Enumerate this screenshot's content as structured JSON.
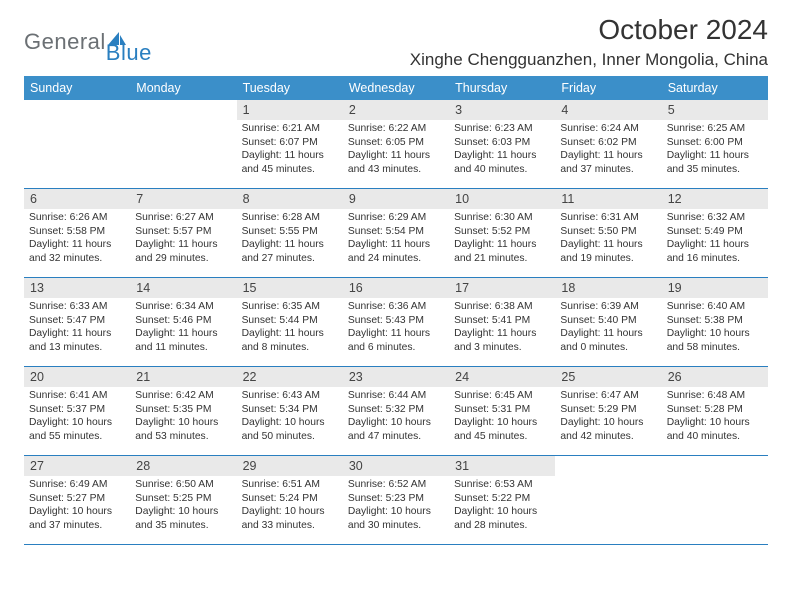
{
  "logo": {
    "general": "General",
    "blue": "Blue"
  },
  "title": {
    "monthYear": "October 2024",
    "location": "Xinghe Chengguanzhen, Inner Mongolia, China"
  },
  "colors": {
    "headerBar": "#3b8fc9",
    "border": "#2a7fc0",
    "dayNumBg": "#e9e9e9",
    "logoGrey": "#6b7074",
    "logoBlue": "#2a7fc0",
    "text": "#333333",
    "bg": "#ffffff"
  },
  "weekdays": [
    "Sunday",
    "Monday",
    "Tuesday",
    "Wednesday",
    "Thursday",
    "Friday",
    "Saturday"
  ],
  "weeks": [
    [
      {
        "empty": true
      },
      {
        "empty": true
      },
      {
        "day": "1",
        "sunrise": "Sunrise: 6:21 AM",
        "sunset": "Sunset: 6:07 PM",
        "daylight1": "Daylight: 11 hours",
        "daylight2": "and 45 minutes."
      },
      {
        "day": "2",
        "sunrise": "Sunrise: 6:22 AM",
        "sunset": "Sunset: 6:05 PM",
        "daylight1": "Daylight: 11 hours",
        "daylight2": "and 43 minutes."
      },
      {
        "day": "3",
        "sunrise": "Sunrise: 6:23 AM",
        "sunset": "Sunset: 6:03 PM",
        "daylight1": "Daylight: 11 hours",
        "daylight2": "and 40 minutes."
      },
      {
        "day": "4",
        "sunrise": "Sunrise: 6:24 AM",
        "sunset": "Sunset: 6:02 PM",
        "daylight1": "Daylight: 11 hours",
        "daylight2": "and 37 minutes."
      },
      {
        "day": "5",
        "sunrise": "Sunrise: 6:25 AM",
        "sunset": "Sunset: 6:00 PM",
        "daylight1": "Daylight: 11 hours",
        "daylight2": "and 35 minutes."
      }
    ],
    [
      {
        "day": "6",
        "sunrise": "Sunrise: 6:26 AM",
        "sunset": "Sunset: 5:58 PM",
        "daylight1": "Daylight: 11 hours",
        "daylight2": "and 32 minutes."
      },
      {
        "day": "7",
        "sunrise": "Sunrise: 6:27 AM",
        "sunset": "Sunset: 5:57 PM",
        "daylight1": "Daylight: 11 hours",
        "daylight2": "and 29 minutes."
      },
      {
        "day": "8",
        "sunrise": "Sunrise: 6:28 AM",
        "sunset": "Sunset: 5:55 PM",
        "daylight1": "Daylight: 11 hours",
        "daylight2": "and 27 minutes."
      },
      {
        "day": "9",
        "sunrise": "Sunrise: 6:29 AM",
        "sunset": "Sunset: 5:54 PM",
        "daylight1": "Daylight: 11 hours",
        "daylight2": "and 24 minutes."
      },
      {
        "day": "10",
        "sunrise": "Sunrise: 6:30 AM",
        "sunset": "Sunset: 5:52 PM",
        "daylight1": "Daylight: 11 hours",
        "daylight2": "and 21 minutes."
      },
      {
        "day": "11",
        "sunrise": "Sunrise: 6:31 AM",
        "sunset": "Sunset: 5:50 PM",
        "daylight1": "Daylight: 11 hours",
        "daylight2": "and 19 minutes."
      },
      {
        "day": "12",
        "sunrise": "Sunrise: 6:32 AM",
        "sunset": "Sunset: 5:49 PM",
        "daylight1": "Daylight: 11 hours",
        "daylight2": "and 16 minutes."
      }
    ],
    [
      {
        "day": "13",
        "sunrise": "Sunrise: 6:33 AM",
        "sunset": "Sunset: 5:47 PM",
        "daylight1": "Daylight: 11 hours",
        "daylight2": "and 13 minutes."
      },
      {
        "day": "14",
        "sunrise": "Sunrise: 6:34 AM",
        "sunset": "Sunset: 5:46 PM",
        "daylight1": "Daylight: 11 hours",
        "daylight2": "and 11 minutes."
      },
      {
        "day": "15",
        "sunrise": "Sunrise: 6:35 AM",
        "sunset": "Sunset: 5:44 PM",
        "daylight1": "Daylight: 11 hours",
        "daylight2": "and 8 minutes."
      },
      {
        "day": "16",
        "sunrise": "Sunrise: 6:36 AM",
        "sunset": "Sunset: 5:43 PM",
        "daylight1": "Daylight: 11 hours",
        "daylight2": "and 6 minutes."
      },
      {
        "day": "17",
        "sunrise": "Sunrise: 6:38 AM",
        "sunset": "Sunset: 5:41 PM",
        "daylight1": "Daylight: 11 hours",
        "daylight2": "and 3 minutes."
      },
      {
        "day": "18",
        "sunrise": "Sunrise: 6:39 AM",
        "sunset": "Sunset: 5:40 PM",
        "daylight1": "Daylight: 11 hours",
        "daylight2": "and 0 minutes."
      },
      {
        "day": "19",
        "sunrise": "Sunrise: 6:40 AM",
        "sunset": "Sunset: 5:38 PM",
        "daylight1": "Daylight: 10 hours",
        "daylight2": "and 58 minutes."
      }
    ],
    [
      {
        "day": "20",
        "sunrise": "Sunrise: 6:41 AM",
        "sunset": "Sunset: 5:37 PM",
        "daylight1": "Daylight: 10 hours",
        "daylight2": "and 55 minutes."
      },
      {
        "day": "21",
        "sunrise": "Sunrise: 6:42 AM",
        "sunset": "Sunset: 5:35 PM",
        "daylight1": "Daylight: 10 hours",
        "daylight2": "and 53 minutes."
      },
      {
        "day": "22",
        "sunrise": "Sunrise: 6:43 AM",
        "sunset": "Sunset: 5:34 PM",
        "daylight1": "Daylight: 10 hours",
        "daylight2": "and 50 minutes."
      },
      {
        "day": "23",
        "sunrise": "Sunrise: 6:44 AM",
        "sunset": "Sunset: 5:32 PM",
        "daylight1": "Daylight: 10 hours",
        "daylight2": "and 47 minutes."
      },
      {
        "day": "24",
        "sunrise": "Sunrise: 6:45 AM",
        "sunset": "Sunset: 5:31 PM",
        "daylight1": "Daylight: 10 hours",
        "daylight2": "and 45 minutes."
      },
      {
        "day": "25",
        "sunrise": "Sunrise: 6:47 AM",
        "sunset": "Sunset: 5:29 PM",
        "daylight1": "Daylight: 10 hours",
        "daylight2": "and 42 minutes."
      },
      {
        "day": "26",
        "sunrise": "Sunrise: 6:48 AM",
        "sunset": "Sunset: 5:28 PM",
        "daylight1": "Daylight: 10 hours",
        "daylight2": "and 40 minutes."
      }
    ],
    [
      {
        "day": "27",
        "sunrise": "Sunrise: 6:49 AM",
        "sunset": "Sunset: 5:27 PM",
        "daylight1": "Daylight: 10 hours",
        "daylight2": "and 37 minutes."
      },
      {
        "day": "28",
        "sunrise": "Sunrise: 6:50 AM",
        "sunset": "Sunset: 5:25 PM",
        "daylight1": "Daylight: 10 hours",
        "daylight2": "and 35 minutes."
      },
      {
        "day": "29",
        "sunrise": "Sunrise: 6:51 AM",
        "sunset": "Sunset: 5:24 PM",
        "daylight1": "Daylight: 10 hours",
        "daylight2": "and 33 minutes."
      },
      {
        "day": "30",
        "sunrise": "Sunrise: 6:52 AM",
        "sunset": "Sunset: 5:23 PM",
        "daylight1": "Daylight: 10 hours",
        "daylight2": "and 30 minutes."
      },
      {
        "day": "31",
        "sunrise": "Sunrise: 6:53 AM",
        "sunset": "Sunset: 5:22 PM",
        "daylight1": "Daylight: 10 hours",
        "daylight2": "and 28 minutes."
      },
      {
        "empty": true
      },
      {
        "empty": true
      }
    ]
  ]
}
